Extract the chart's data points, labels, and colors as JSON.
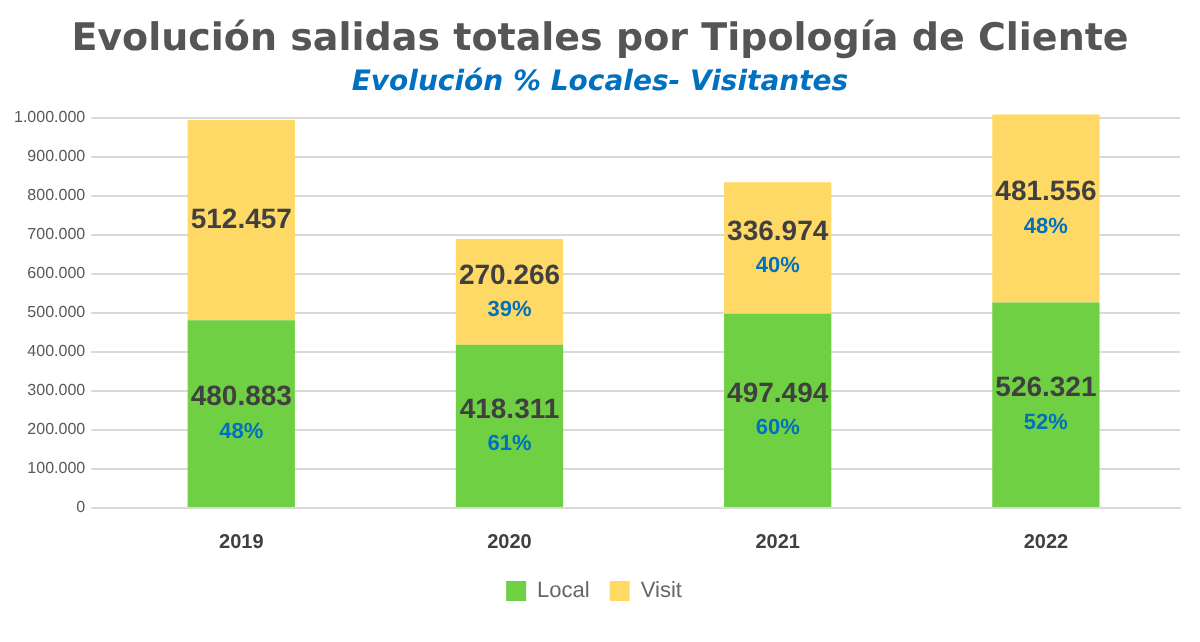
{
  "chart_data": {
    "type": "bar",
    "title": "Evolución salidas totales por Tipología de Cliente",
    "subtitle": "Evolución % Locales- Visitantes",
    "categories": [
      "2019",
      "2020",
      "2021",
      "2022"
    ],
    "stacked": true,
    "series": [
      {
        "name": "Local",
        "color": "#70d044",
        "values": [
          480883,
          418311,
          497494,
          526321
        ],
        "value_labels": [
          "480.883\n48%",
          "418.311\n61%",
          "497.494\n60%",
          "526.321\n52%"
        ]
      },
      {
        "name": "Visit",
        "color": "#ffd965",
        "values": [
          512457,
          270266,
          336974,
          481556
        ],
        "value_labels": [
          "512.457",
          "270.266\n39%",
          "336.974\n40%",
          "481.556\n48%"
        ]
      }
    ],
    "ylim": [
      0,
      1010000
    ],
    "yticks": [
      0,
      {
        "value": 100000,
        "label": "100.000"
      },
      {
        "value": 200000,
        "label": "200.000"
      },
      {
        "value": 300000,
        "label": "300.000"
      },
      {
        "value": 400000,
        "label": "400.000"
      },
      {
        "value": 500000,
        "label": "500.000"
      },
      {
        "value": 600000,
        "label": "600.000"
      },
      {
        "value": 700000,
        "label": "700.000"
      },
      {
        "value": 800000,
        "label": "800.000"
      },
      {
        "value": 900000,
        "label": "900.000"
      },
      {
        "value": 1000000,
        "label": "1.000.000"
      }
    ],
    "grid": "y",
    "legend": "bottom"
  }
}
